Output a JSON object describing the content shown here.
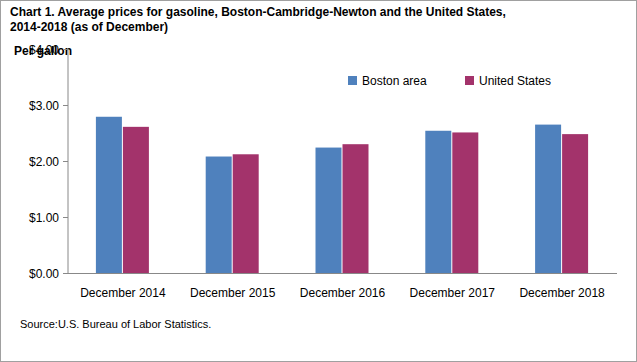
{
  "chart_data": {
    "type": "bar",
    "title": "Chart 1. Average prices for gasoline, Boston-Cambridge-Newton  and the United States,\n2014-2018 (as of December)",
    "y_label": "Per gallon",
    "source": "Source:U.S. Bureau of Labor Statistics.",
    "categories": [
      "December 2014",
      "December 2015",
      "December 2016",
      "December 2017",
      "December 2018"
    ],
    "series": [
      {
        "name": "Boston area",
        "color": "#4f81bd",
        "values": [
          2.79,
          2.08,
          2.24,
          2.54,
          2.65
        ]
      },
      {
        "name": "United States",
        "color": "#a3336b",
        "values": [
          2.61,
          2.12,
          2.3,
          2.51,
          2.48
        ]
      }
    ],
    "ylim": [
      0,
      4
    ],
    "yticks": [
      {
        "value": 0,
        "label": "$0.00"
      },
      {
        "value": 1,
        "label": "$1.00"
      },
      {
        "value": 2,
        "label": "$2.00"
      },
      {
        "value": 3,
        "label": "$3.00"
      },
      {
        "value": 4,
        "label": "$4.00"
      }
    ],
    "grid": false,
    "legend": "top-right"
  }
}
